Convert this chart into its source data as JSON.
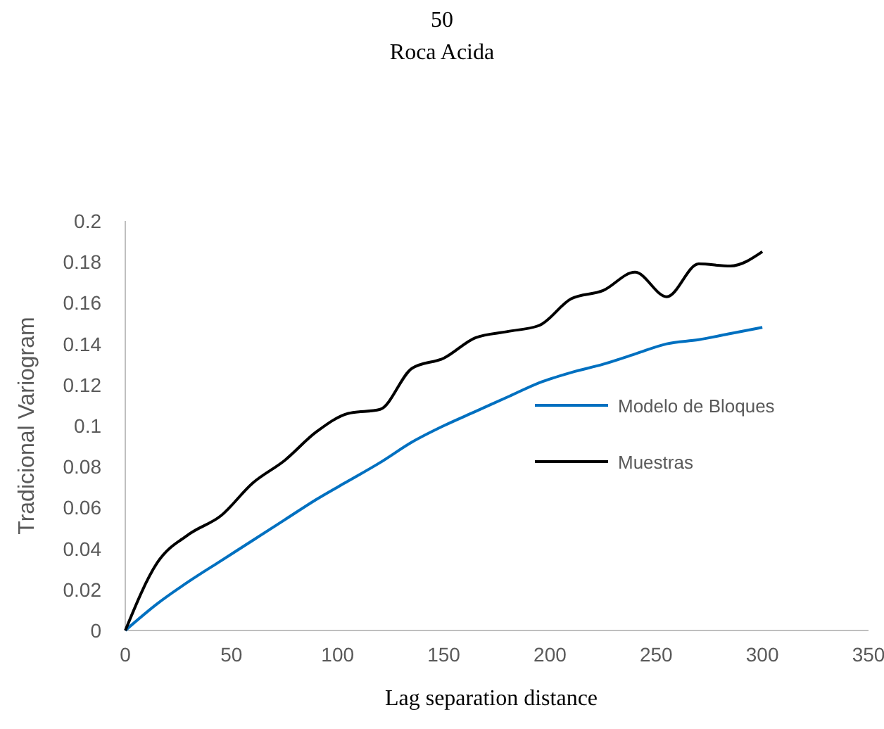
{
  "chart_data": {
    "type": "line",
    "title": "50",
    "subtitle": "Roca Acida",
    "xlabel": "Lag separation distance",
    "ylabel": "Tradicional Variogram",
    "x": [
      0,
      15,
      30,
      45,
      60,
      75,
      90,
      105,
      120,
      135,
      150,
      165,
      180,
      195,
      210,
      225,
      240,
      255,
      270,
      285,
      300
    ],
    "series": [
      {
        "name": "Modelo de Bloques",
        "color": "#0070c0",
        "values": [
          0,
          0.013,
          0.024,
          0.034,
          0.044,
          0.054,
          0.064,
          0.073,
          0.082,
          0.092,
          0.1,
          0.107,
          0.114,
          0.121,
          0.126,
          0.13,
          0.135,
          0.14,
          0.142,
          0.145,
          0.148
        ]
      },
      {
        "name": "Muestras",
        "color": "#000000",
        "values": [
          0,
          0.033,
          0.047,
          0.056,
          0.072,
          0.083,
          0.097,
          0.106,
          0.108,
          0.128,
          0.133,
          0.143,
          0.146,
          0.149,
          0.162,
          0.166,
          0.175,
          0.163,
          0.179,
          0.178,
          0.185
        ]
      }
    ],
    "xlim": [
      0,
      350
    ],
    "xticks": [
      0,
      50,
      100,
      150,
      200,
      250,
      300,
      350
    ],
    "ylim": [
      0,
      0.2
    ],
    "yticks": [
      0,
      0.02,
      0.04,
      0.06,
      0.08,
      0.1,
      0.12,
      0.14,
      0.16,
      0.18,
      0.2
    ],
    "grid": false,
    "legend": "right",
    "marker": "none",
    "line_style": "solid"
  }
}
